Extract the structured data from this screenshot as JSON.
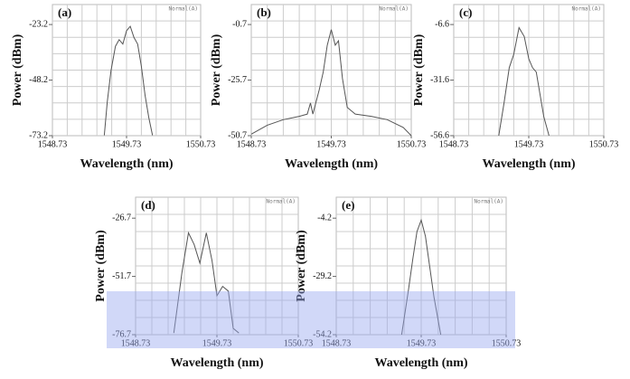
{
  "chart_data": [
    {
      "type": "line",
      "panel_label": "(a)",
      "status": "Normal(A)",
      "x_label": "Wavelength (nm)",
      "y_label": "Power (dBm)",
      "x": [
        1549.43,
        1549.47,
        1549.52,
        1549.58,
        1549.63,
        1549.68,
        1549.73,
        1549.78,
        1549.83,
        1549.88,
        1549.93,
        1549.98,
        1550.03,
        1550.08
      ],
      "values": [
        -73,
        -58,
        -44,
        -33,
        -30,
        -32,
        -26,
        -24,
        -29,
        -32,
        -42,
        -55,
        -65,
        -73
      ],
      "color": "#555555",
      "xlim": [
        1548.73,
        1550.73
      ],
      "xticks": [
        1548.73,
        1549.73,
        1550.73
      ],
      "ylim": [
        -73.2,
        -14.2
      ],
      "yticks": [
        -23.2,
        -48.2,
        -73.2
      ],
      "grid": true
    },
    {
      "type": "line",
      "panel_label": "(b)",
      "status": "Normal(A)",
      "x_label": "Wavelength (nm)",
      "y_label": "Power (dBm)",
      "x": [
        1548.73,
        1548.93,
        1549.13,
        1549.33,
        1549.43,
        1549.47,
        1549.5,
        1549.58,
        1549.63,
        1549.68,
        1549.73,
        1549.78,
        1549.82,
        1549.87,
        1549.93,
        1550.03,
        1550.23,
        1550.43,
        1550.63,
        1550.73
      ],
      "values": [
        -50,
        -46,
        -43.5,
        -42,
        -41,
        -36,
        -41,
        -30,
        -22,
        -10,
        -3,
        -10,
        -8,
        -25,
        -38,
        -41,
        -42,
        -43.5,
        -47,
        -50.7
      ],
      "color": "#555555",
      "xlim": [
        1548.73,
        1550.73
      ],
      "xticks": [
        1548.73,
        1549.73,
        1550.73
      ],
      "ylim": [
        -50.7,
        8.3
      ],
      "yticks": [
        -0.7,
        -25.7,
        -50.7
      ],
      "grid": true
    },
    {
      "type": "line",
      "panel_label": "(c)",
      "status": "Normal(A)",
      "x_label": "Wavelength (nm)",
      "y_label": "Power (dBm)",
      "x": [
        1549.33,
        1549.4,
        1549.47,
        1549.53,
        1549.6,
        1549.67,
        1549.73,
        1549.78,
        1549.83,
        1549.88,
        1549.93,
        1550.0
      ],
      "values": [
        -56.6,
        -42,
        -26,
        -20,
        -8,
        -12,
        -22,
        -26,
        -28,
        -38,
        -48,
        -56.6
      ],
      "color": "#555555",
      "xlim": [
        1548.73,
        1550.73
      ],
      "xticks": [
        1548.73,
        1549.73,
        1550.73
      ],
      "ylim": [
        -56.6,
        2.4
      ],
      "yticks": [
        -6.6,
        -31.6,
        -56.6
      ],
      "grid": true
    },
    {
      "type": "line",
      "panel_label": "(d)",
      "status": "Normal(A)",
      "x_label": "Wavelength (nm)",
      "y_label": "Power (dBm)",
      "x": [
        1549.2,
        1549.3,
        1549.38,
        1549.45,
        1549.52,
        1549.6,
        1549.67,
        1549.73,
        1549.8,
        1549.87,
        1549.93,
        1550.0
      ],
      "values": [
        -76,
        -50,
        -33,
        -38,
        -46,
        -33,
        -45,
        -60,
        -56,
        -58,
        -74,
        -76
      ],
      "color": "#555555",
      "xlim": [
        1548.73,
        1550.73
      ],
      "xticks": [
        1548.73,
        1549.73,
        1550.73
      ],
      "ylim": [
        -76.7,
        -17.7
      ],
      "yticks": [
        -26.7,
        -51.7,
        -76.7
      ],
      "grid": true
    },
    {
      "type": "line",
      "panel_label": "(e)",
      "status": "Normal(A)",
      "x_label": "Wavelength (nm)",
      "y_label": "Power (dBm)",
      "x": [
        1549.5,
        1549.58,
        1549.63,
        1549.68,
        1549.73,
        1549.78,
        1549.83,
        1549.88,
        1549.96
      ],
      "values": [
        -54.2,
        -35,
        -22,
        -10,
        -5,
        -12,
        -25,
        -38,
        -54.2
      ],
      "color": "#555555",
      "xlim": [
        1548.73,
        1550.73
      ],
      "xticks": [
        1548.73,
        1549.73,
        1550.73
      ],
      "ylim": [
        -54.2,
        4.8
      ],
      "yticks": [
        -4.2,
        -29.2,
        -54.2
      ],
      "grid": true
    }
  ]
}
